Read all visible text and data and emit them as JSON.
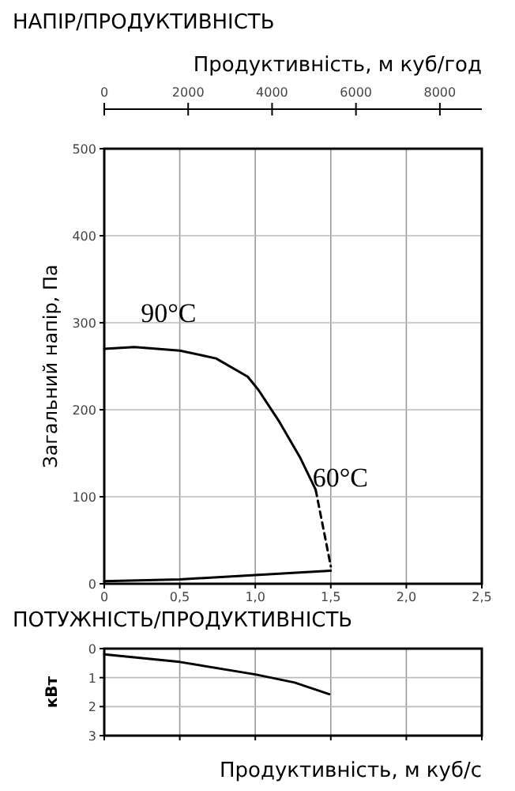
{
  "chart_data": [
    {
      "type": "line",
      "title": "НАПІР/ПРОДУКТИВНІСТЬ",
      "ylabel": "Загальний напір, Па",
      "x2label": "Продуктивність, м куб/год",
      "xlim": [
        0,
        2.5
      ],
      "xticks": [
        0,
        {
          "value": 0.5,
          "label": "0,5"
        },
        {
          "value": 1,
          "label": "1,0"
        },
        {
          "value": 1.5,
          "label": "1,5"
        },
        {
          "value": 2,
          "label": "2,0"
        },
        {
          "value": 2.5,
          "label": "2,5"
        }
      ],
      "ylim": [
        0,
        500
      ],
      "yticks": [
        0,
        100,
        200,
        300,
        400,
        500
      ],
      "x2lim": [
        0,
        9000
      ],
      "x2ticks": [
        0,
        2000,
        4000,
        6000,
        8000
      ],
      "grid": true,
      "series": [
        {
          "name": "90°C",
          "color": "#000000",
          "line_style": "solid",
          "x": [
            0,
            0.2,
            0.5,
            0.74,
            0.95,
            1.02,
            1.16,
            1.3,
            1.4
          ],
          "values": [
            270,
            272,
            268,
            259,
            238,
            223,
            186,
            144,
            108
          ]
        },
        {
          "name": "60°C",
          "color": "#000000",
          "line_style": "dashed",
          "x": [
            1.4,
            1.5
          ],
          "values": [
            108,
            20
          ]
        },
        {
          "color": "#000000",
          "line_style": "solid",
          "x": [
            0,
            0.5,
            1,
            1.5
          ],
          "values": [
            3,
            5,
            10,
            15
          ]
        }
      ]
    },
    {
      "type": "line",
      "title": "ПОТУЖНІСТЬ/ПРОДУКТИВНІСТЬ",
      "ylabel": "кВт",
      "xlabel": "Продуктивність, м куб/с",
      "xlim": [
        0,
        2.5
      ],
      "xticks": [
        0,
        0.5,
        1,
        1.5,
        2,
        2.5
      ],
      "ylim": [
        3,
        0
      ],
      "yticks": [
        0,
        1,
        2,
        3
      ],
      "tick_labels": "y",
      "grid": true,
      "series": [
        {
          "color": "#000000",
          "line_style": "solid",
          "x": [
            0,
            0.5,
            1,
            1.26,
            1.49
          ],
          "values": [
            0.2,
            0.46,
            0.89,
            1.17,
            1.57
          ]
        }
      ]
    }
  ]
}
